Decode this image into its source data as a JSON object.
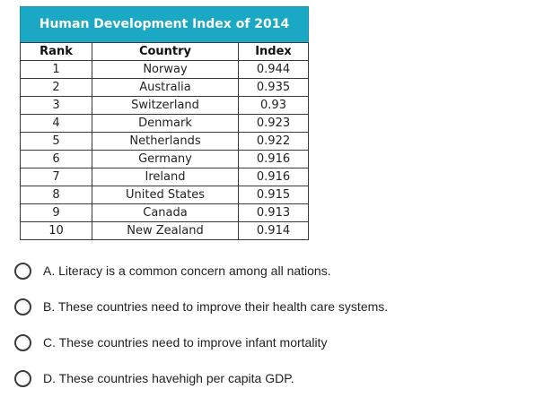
{
  "table": {
    "title": "Human Development Index of 2014",
    "headers": [
      "Rank",
      "Country",
      "Index"
    ],
    "rows": [
      [
        "1",
        "Norway",
        "0.944"
      ],
      [
        "2",
        "Australia",
        "0.935"
      ],
      [
        "3",
        "Switzerland",
        "0.93"
      ],
      [
        "4",
        "Denmark",
        "0.923"
      ],
      [
        "5",
        "Netherlands",
        "0.922"
      ],
      [
        "6",
        "Germany",
        "0.916"
      ],
      [
        "7",
        "Ireland",
        "0.916"
      ],
      [
        "8",
        "United States",
        "0.915"
      ],
      [
        "9",
        "Canada",
        "0.913"
      ],
      [
        "10",
        "New Zealand",
        "0.914"
      ]
    ],
    "header_color": "#1aa8c4"
  },
  "options": [
    {
      "label": "A. Literacy is a common concern among all nations.",
      "selected": false
    },
    {
      "label": "B. These countries need to improve their health care systems.",
      "selected": false
    },
    {
      "label": "C. These countries need to improve infant mortality",
      "selected": false
    },
    {
      "label": "D. These countries havehigh per capita GDP.",
      "selected": false
    }
  ]
}
